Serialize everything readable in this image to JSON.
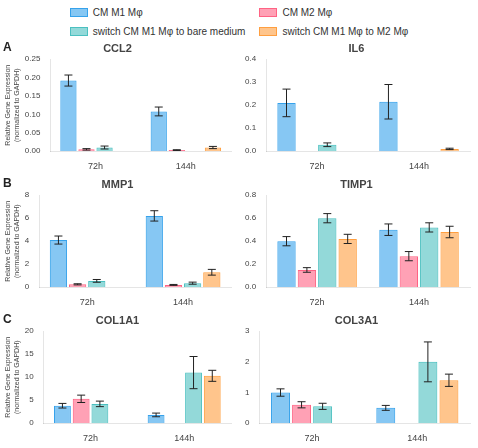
{
  "chart_data": [
    {
      "type": "bar",
      "title": "CCL2",
      "annotations": [
        "A"
      ],
      "legend": "top",
      "grid": false,
      "categories": [
        "72h",
        "144h"
      ],
      "ylabel": "Relative Gene Expression\n(normalized to GAPDH)",
      "ylim": [
        0,
        0.25
      ],
      "yticks": [
        {
          "value": 0.0,
          "label": "0.00"
        },
        0.05,
        {
          "value": 0.1,
          "label": "0.10"
        },
        0.15,
        {
          "value": 0.2,
          "label": "0.20"
        },
        0.25
      ],
      "series": [
        {
          "name": "CM M1 Mφ",
          "values": [
            0.192,
            0.108
          ],
          "errors": [
            0.015,
            0.012
          ]
        },
        {
          "name": "CM M2 Mφ",
          "values": [
            0.005,
            0.003
          ],
          "errors": [
            0.002,
            0.001
          ]
        },
        {
          "name": "switch CM M1 Mφ to bare medium",
          "values": [
            0.01,
            null
          ],
          "errors": [
            0.004,
            null
          ]
        },
        {
          "name": "switch CM M1 Mφ to M2 Mφ",
          "values": [
            null,
            0.01
          ],
          "errors": [
            null,
            0.003
          ]
        }
      ]
    },
    {
      "type": "bar",
      "title": "IL6",
      "grid": false,
      "categories": [
        "72h",
        "144h"
      ],
      "ylim": [
        0,
        0.4
      ],
      "yticks": [
        {
          "value": 0.0,
          "label": "0.0"
        },
        0.1,
        0.2,
        0.3,
        0.4
      ],
      "series": [
        {
          "name": "CM M1 Mφ",
          "values": [
            0.21,
            0.215
          ],
          "errors": [
            0.06,
            0.075
          ]
        },
        {
          "name": "CM M2 Mφ",
          "values": [
            null,
            null
          ],
          "errors": [
            null,
            null
          ]
        },
        {
          "name": "switch CM M1 Mφ to bare medium",
          "values": [
            0.028,
            null
          ],
          "errors": [
            0.008,
            null
          ]
        },
        {
          "name": "switch CM M1 Mφ to M2 Mφ",
          "values": [
            null,
            0.01
          ],
          "errors": [
            null,
            0.003
          ]
        }
      ]
    },
    {
      "type": "bar",
      "title": "MMP1",
      "annotations": [
        "B"
      ],
      "grid": false,
      "categories": [
        "72h",
        "144h"
      ],
      "ylabel": "Relative Gene Expression\n(normalized to GAPDH)",
      "ylim": [
        0,
        8
      ],
      "yticks": [
        0,
        2,
        4,
        6,
        8
      ],
      "series": [
        {
          "name": "CM M1 Mφ",
          "values": [
            4.1,
            6.2
          ],
          "errors": [
            0.35,
            0.45
          ]
        },
        {
          "name": "CM M2 Mφ",
          "values": [
            0.25,
            0.2
          ],
          "errors": [
            0.05,
            0.04
          ]
        },
        {
          "name": "switch CM M1 Mφ to bare medium",
          "values": [
            0.55,
            0.35
          ],
          "errors": [
            0.12,
            0.09
          ]
        },
        {
          "name": "switch CM M1 Mφ to M2 Mφ",
          "values": [
            null,
            1.3
          ],
          "errors": [
            null,
            0.25
          ]
        }
      ]
    },
    {
      "type": "bar",
      "title": "TIMP1",
      "grid": false,
      "categories": [
        "72h",
        "144h"
      ],
      "ylim": [
        0,
        0.8
      ],
      "yticks": [
        {
          "value": 0.0,
          "label": "0.0"
        },
        0.2,
        0.4,
        0.6,
        0.8
      ],
      "series": [
        {
          "name": "CM M1 Mφ",
          "values": [
            0.4,
            0.5
          ],
          "errors": [
            0.04,
            0.05
          ]
        },
        {
          "name": "CM M2 Mφ",
          "values": [
            0.15,
            0.27
          ],
          "errors": [
            0.02,
            0.04
          ]
        },
        {
          "name": "switch CM M1 Mφ to bare medium",
          "values": [
            0.6,
            0.52
          ],
          "errors": [
            0.04,
            0.04
          ]
        },
        {
          "name": "switch CM M1 Mφ to M2 Mφ",
          "values": [
            0.42,
            0.48
          ],
          "errors": [
            0.04,
            0.05
          ]
        }
      ]
    },
    {
      "type": "bar",
      "title": "COL1A1",
      "annotations": [
        "C"
      ],
      "grid": false,
      "categories": [
        "72h",
        "144h"
      ],
      "ylabel": "Relative Gene Expression\n(normalized to GAPDH)",
      "ylim": [
        0,
        20
      ],
      "yticks": [
        0,
        5,
        10,
        15,
        20
      ],
      "series": [
        {
          "name": "CM M1 Mφ",
          "values": [
            3.8,
            1.8
          ],
          "errors": [
            0.5,
            0.4
          ]
        },
        {
          "name": "CM M2 Mφ",
          "values": [
            5.3,
            null
          ],
          "errors": [
            0.8,
            null
          ]
        },
        {
          "name": "switch CM M1 Mφ to bare medium",
          "values": [
            4.2,
            11.0
          ],
          "errors": [
            0.6,
            3.5
          ]
        },
        {
          "name": "switch CM M1 Mφ to M2 Mφ",
          "values": [
            null,
            10.3
          ],
          "errors": [
            null,
            1.2
          ]
        }
      ]
    },
    {
      "type": "bar",
      "title": "COL3A1",
      "grid": false,
      "categories": [
        "72h",
        "144h"
      ],
      "ylim": [
        0,
        3
      ],
      "yticks": [
        0,
        1,
        2,
        3
      ],
      "series": [
        {
          "name": "CM M1 Mφ",
          "values": [
            1.0,
            0.5
          ],
          "errors": [
            0.12,
            0.08
          ]
        },
        {
          "name": "CM M2 Mφ",
          "values": [
            0.6,
            null
          ],
          "errors": [
            0.1,
            null
          ]
        },
        {
          "name": "switch CM M1 Mφ to bare medium",
          "values": [
            0.55,
            2.0
          ],
          "errors": [
            0.1,
            0.65
          ]
        },
        {
          "name": "switch CM M1 Mφ to M2 Mφ",
          "values": [
            null,
            1.4
          ],
          "errors": [
            null,
            0.2
          ]
        }
      ]
    }
  ]
}
